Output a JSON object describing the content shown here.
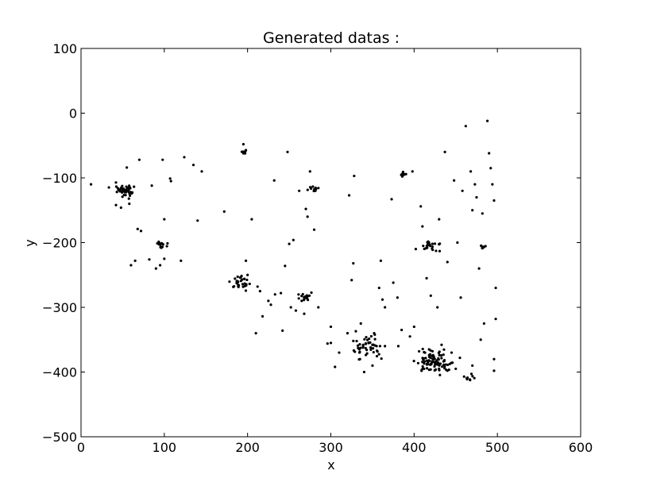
{
  "chart_data": {
    "type": "scatter",
    "title": "Generated datas :",
    "xlabel": "x",
    "ylabel": "y",
    "xlim": [
      0,
      600
    ],
    "ylim": [
      -500,
      100
    ],
    "x_ticks": [
      0,
      100,
      200,
      300,
      400,
      500,
      600
    ],
    "y_ticks": [
      100,
      0,
      -100,
      -200,
      -300,
      -400,
      -500
    ],
    "x_tick_labels": [
      "0",
      "100",
      "200",
      "300",
      "400",
      "500",
      "600"
    ],
    "y_tick_labels": [
      "100",
      "0",
      "−100",
      "−200",
      "−300",
      "−400",
      "−500"
    ],
    "grid": false,
    "marker_color": "#000000",
    "clusters": [
      {
        "x": 52,
        "y": -120,
        "spread": 7,
        "count": 40
      },
      {
        "x": 97,
        "y": -203,
        "spread": 3,
        "count": 14
      },
      {
        "x": 190,
        "y": -262,
        "spread": 6,
        "count": 30
      },
      {
        "x": 270,
        "y": -283,
        "spread": 4,
        "count": 16
      },
      {
        "x": 280,
        "y": -116,
        "spread": 3,
        "count": 12
      },
      {
        "x": 345,
        "y": -362,
        "spread": 10,
        "count": 45
      },
      {
        "x": 425,
        "y": -385,
        "spread": 10,
        "count": 90
      },
      {
        "x": 420,
        "y": -205,
        "spread": 5,
        "count": 22
      },
      {
        "x": 387,
        "y": -96,
        "spread": 3,
        "count": 10
      },
      {
        "x": 467,
        "y": -408,
        "spread": 3,
        "count": 8
      },
      {
        "x": 195,
        "y": -60,
        "spread": 2,
        "count": 8
      },
      {
        "x": 482,
        "y": -207,
        "spread": 2,
        "count": 8
      }
    ],
    "points": [
      [
        12,
        -110
      ],
      [
        70,
        -72
      ],
      [
        85,
        -112
      ],
      [
        100,
        -164
      ],
      [
        98,
        -72
      ],
      [
        107,
        -101
      ],
      [
        108,
        -105
      ],
      [
        120,
        -228
      ],
      [
        124,
        -68
      ],
      [
        135,
        -80
      ],
      [
        140,
        -166
      ],
      [
        145,
        -90
      ],
      [
        172,
        -152
      ],
      [
        195,
        -48
      ],
      [
        195,
        -62
      ],
      [
        198,
        -228
      ],
      [
        200,
        -250
      ],
      [
        205,
        -164
      ],
      [
        210,
        -340
      ],
      [
        218,
        -314
      ],
      [
        232,
        -104
      ],
      [
        240,
        -278
      ],
      [
        242,
        -336
      ],
      [
        248,
        -60
      ],
      [
        250,
        -202
      ],
      [
        255,
        -196
      ],
      [
        262,
        -120
      ],
      [
        270,
        -148
      ],
      [
        272,
        -160
      ],
      [
        268,
        -310
      ],
      [
        275,
        -90
      ],
      [
        280,
        -180
      ],
      [
        296,
        -356
      ],
      [
        300,
        -330
      ],
      [
        305,
        -392
      ],
      [
        322,
        -127
      ],
      [
        325,
        -258
      ],
      [
        327,
        -232
      ],
      [
        328,
        -97
      ],
      [
        330,
        -337
      ],
      [
        336,
        -325
      ],
      [
        340,
        -400
      ],
      [
        350,
        -390
      ],
      [
        360,
        -228
      ],
      [
        358,
        -270
      ],
      [
        362,
        -288
      ],
      [
        365,
        -300
      ],
      [
        373,
        -133
      ],
      [
        375,
        -262
      ],
      [
        380,
        -285
      ],
      [
        381,
        -360
      ],
      [
        398,
        -90
      ],
      [
        400,
        -330
      ],
      [
        402,
        -210
      ],
      [
        408,
        -144
      ],
      [
        410,
        -175
      ],
      [
        415,
        -255
      ],
      [
        420,
        -282
      ],
      [
        428,
        -300
      ],
      [
        430,
        -164
      ],
      [
        437,
        -60
      ],
      [
        440,
        -230
      ],
      [
        448,
        -104
      ],
      [
        452,
        -200
      ],
      [
        456,
        -285
      ],
      [
        458,
        -120
      ],
      [
        460,
        -407
      ],
      [
        462,
        -20
      ],
      [
        468,
        -90
      ],
      [
        470,
        -150
      ],
      [
        473,
        -110
      ],
      [
        475,
        -130
      ],
      [
        478,
        -240
      ],
      [
        482,
        -155
      ],
      [
        484,
        -325
      ],
      [
        488,
        -12
      ],
      [
        490,
        -62
      ],
      [
        492,
        -85
      ],
      [
        494,
        -110
      ],
      [
        496,
        -135
      ],
      [
        498,
        -270
      ],
      [
        498,
        -318
      ],
      [
        496,
        -380
      ],
      [
        496,
        -398
      ],
      [
        480,
        -350
      ],
      [
        470,
        -390
      ],
      [
        450,
        -395
      ],
      [
        300,
        -355
      ],
      [
        310,
        -370
      ],
      [
        320,
        -340
      ],
      [
        335,
        -380
      ],
      [
        352,
        -340
      ],
      [
        365,
        -360
      ],
      [
        385,
        -335
      ],
      [
        395,
        -345
      ],
      [
        406,
        -368
      ],
      [
        412,
        -395
      ],
      [
        418,
        -365
      ],
      [
        433,
        -358
      ],
      [
        445,
        -370
      ],
      [
        455,
        -378
      ],
      [
        100,
        -225
      ],
      [
        95,
        -235
      ],
      [
        90,
        -240
      ],
      [
        60,
        -235
      ],
      [
        65,
        -228
      ],
      [
        82,
        -226
      ],
      [
        42,
        -142
      ],
      [
        48,
        -146
      ],
      [
        58,
        -140
      ],
      [
        55,
        -84
      ],
      [
        68,
        -179
      ],
      [
        72,
        -182
      ],
      [
        212,
        -268
      ],
      [
        215,
        -275
      ],
      [
        225,
        -290
      ],
      [
        233,
        -280
      ],
      [
        228,
        -296
      ],
      [
        245,
        -236
      ],
      [
        252,
        -300
      ],
      [
        258,
        -305
      ],
      [
        265,
        -290
      ],
      [
        285,
        -300
      ]
    ]
  }
}
